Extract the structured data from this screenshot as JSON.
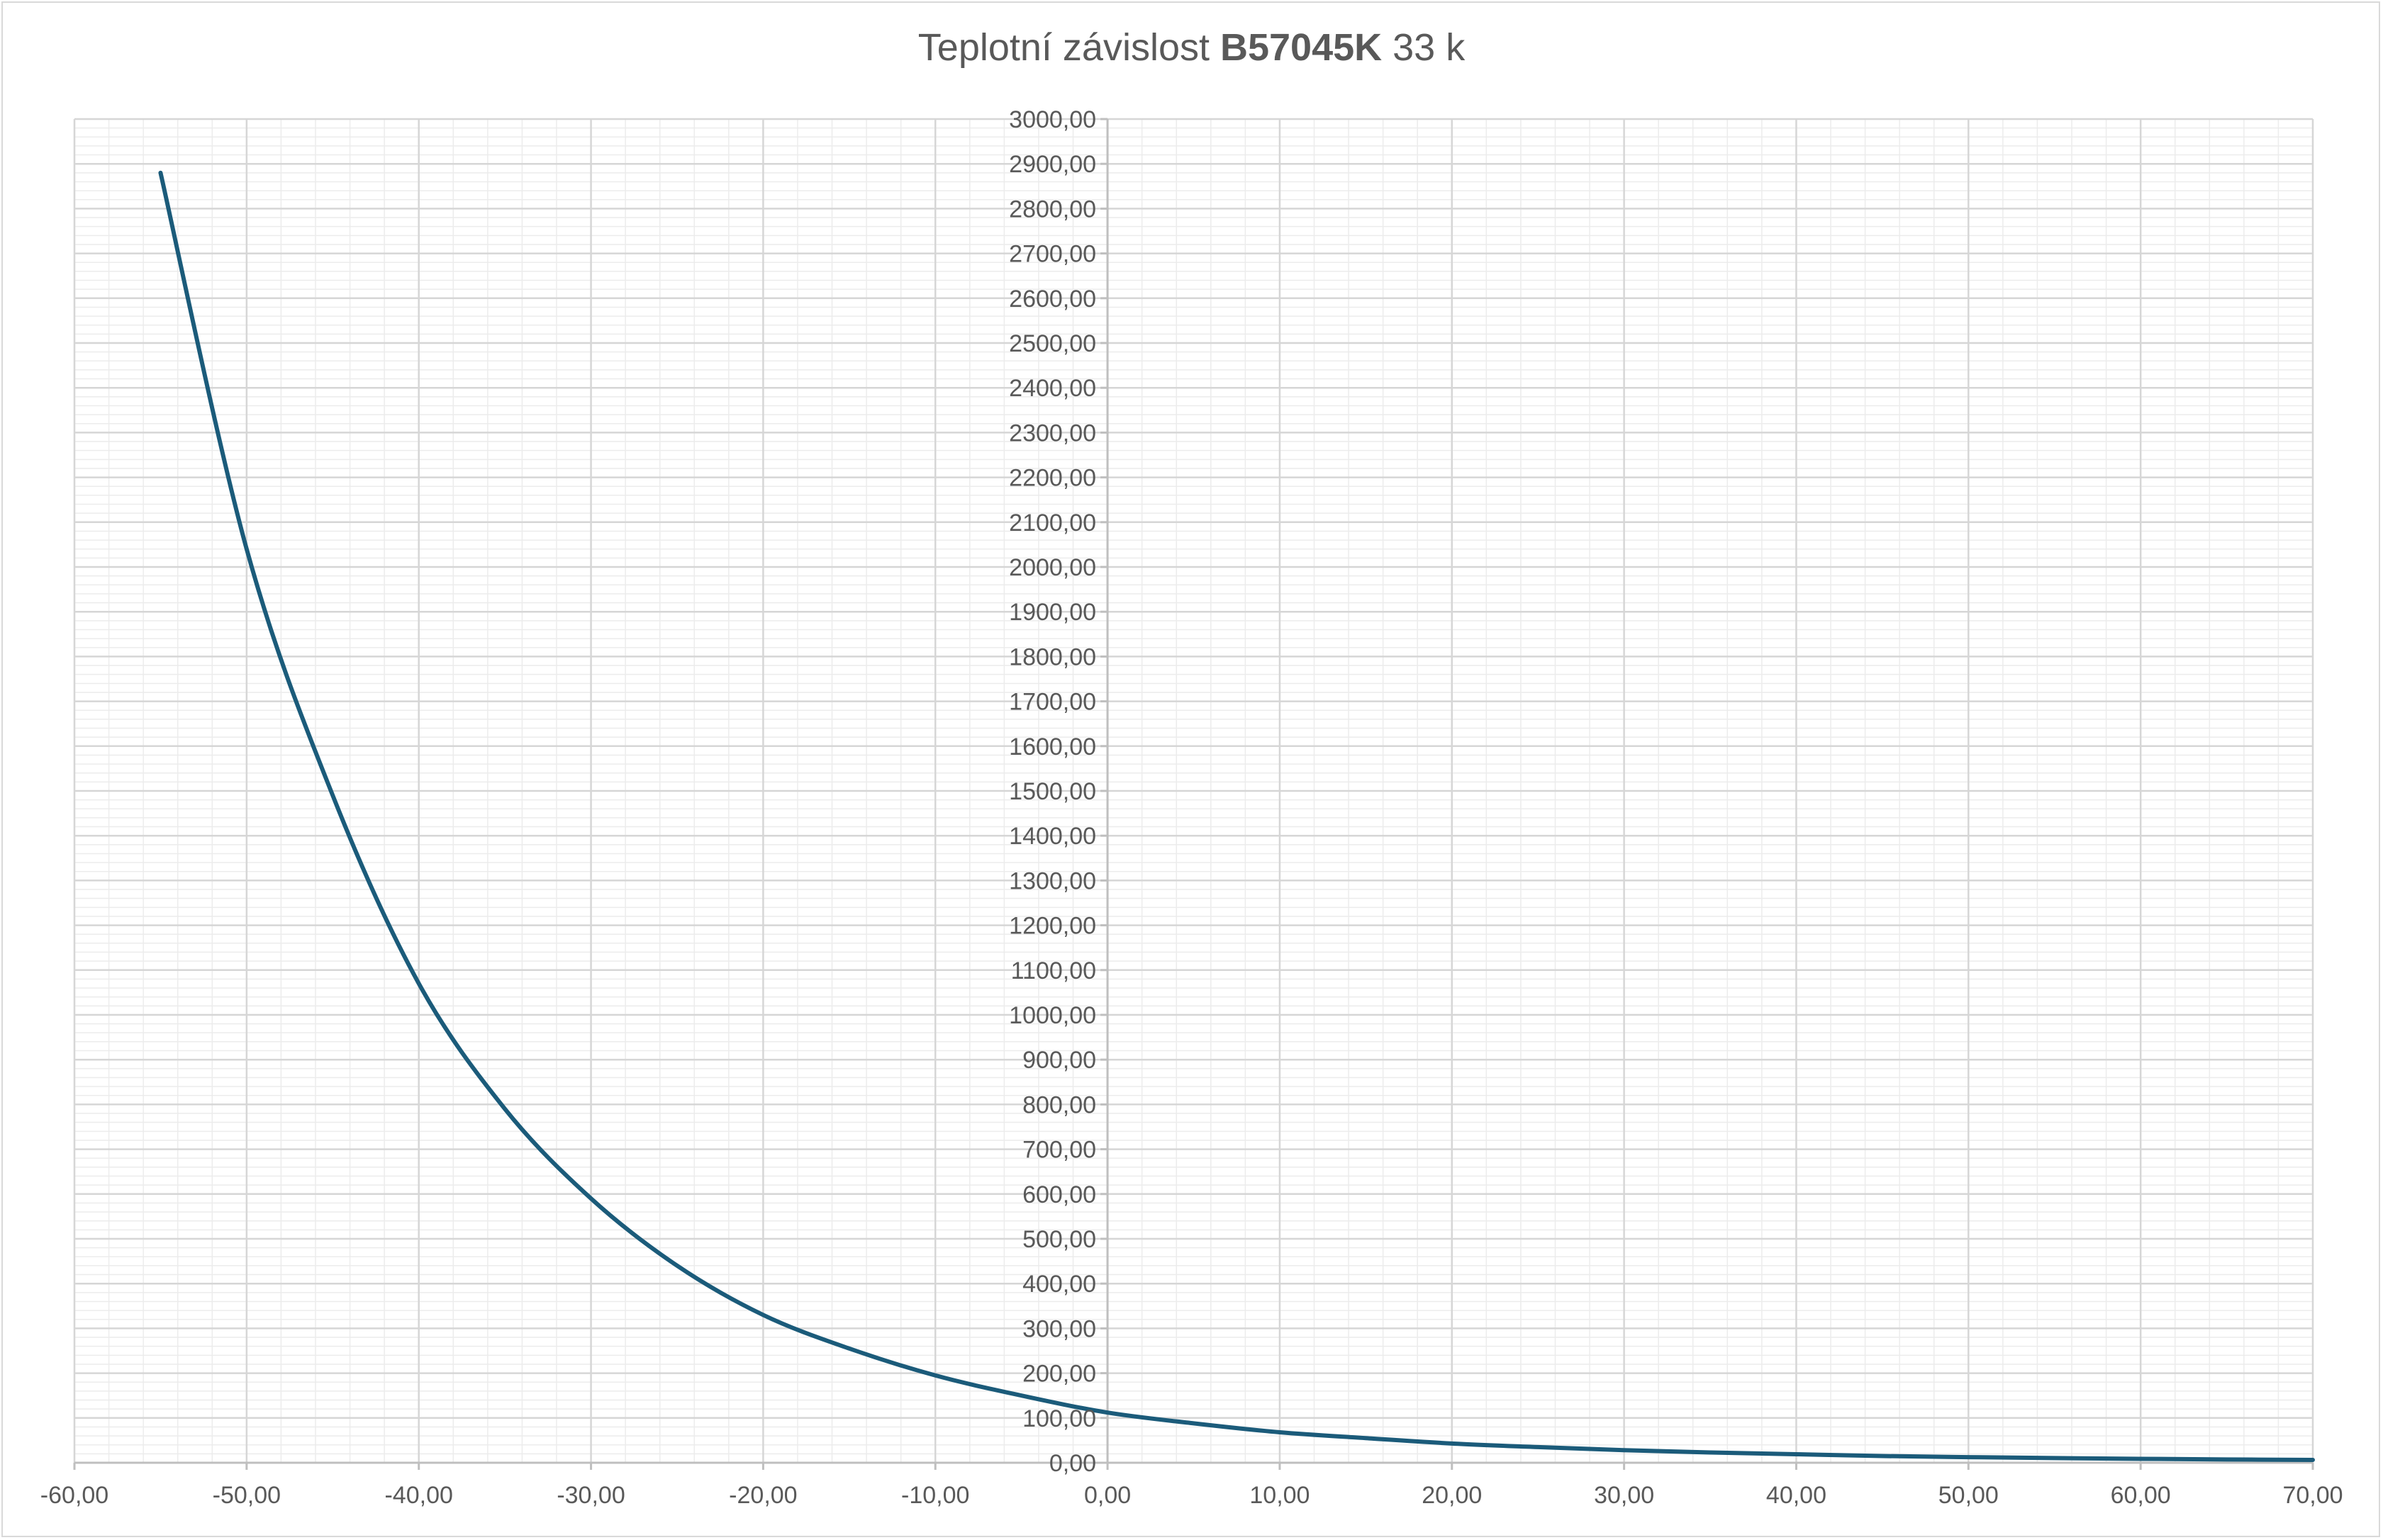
{
  "chart_data": {
    "type": "line",
    "title": {
      "prefix": "Teplotní závislost ",
      "bold": "B57045K",
      "suffix": " 33 k"
    },
    "xlabel": "",
    "ylabel": "",
    "xlim": [
      -60,
      70
    ],
    "ylim": [
      0,
      3000
    ],
    "x_ticks": [
      "-60,00",
      "-50,00",
      "-40,00",
      "-30,00",
      "-20,00",
      "-10,00",
      "0,00",
      "10,00",
      "20,00",
      "30,00",
      "40,00",
      "50,00",
      "60,00",
      "70,00"
    ],
    "y_ticks": [
      "0,00",
      "100,00",
      "200,00",
      "300,00",
      "400,00",
      "500,00",
      "600,00",
      "700,00",
      "800,00",
      "900,00",
      "1000,00",
      "1100,00",
      "1200,00",
      "1300,00",
      "1400,00",
      "1500,00",
      "1600,00",
      "1700,00",
      "1800,00",
      "1900,00",
      "2000,00",
      "2100,00",
      "2200,00",
      "2300,00",
      "2400,00",
      "2500,00",
      "2600,00",
      "2700,00",
      "2800,00",
      "2900,00",
      "3000,00"
    ],
    "grid": true,
    "legend": "none",
    "series": [
      {
        "color": "#1b5b7a",
        "x": [
          -55,
          -50,
          -45,
          -40,
          -35,
          -30,
          -25,
          -20,
          -15,
          -10,
          -5,
          0,
          5,
          10,
          15,
          20,
          25,
          30,
          35,
          40,
          45,
          50,
          55,
          60,
          65,
          70
        ],
        "y": [
          2880,
          2040,
          1490,
          1070,
          790,
          590,
          440,
          330,
          255,
          195,
          150,
          112,
          88,
          68,
          55,
          43,
          35,
          28,
          23,
          19,
          15,
          12.5,
          10.5,
          8.8,
          7.4,
          6.3
        ]
      }
    ]
  }
}
